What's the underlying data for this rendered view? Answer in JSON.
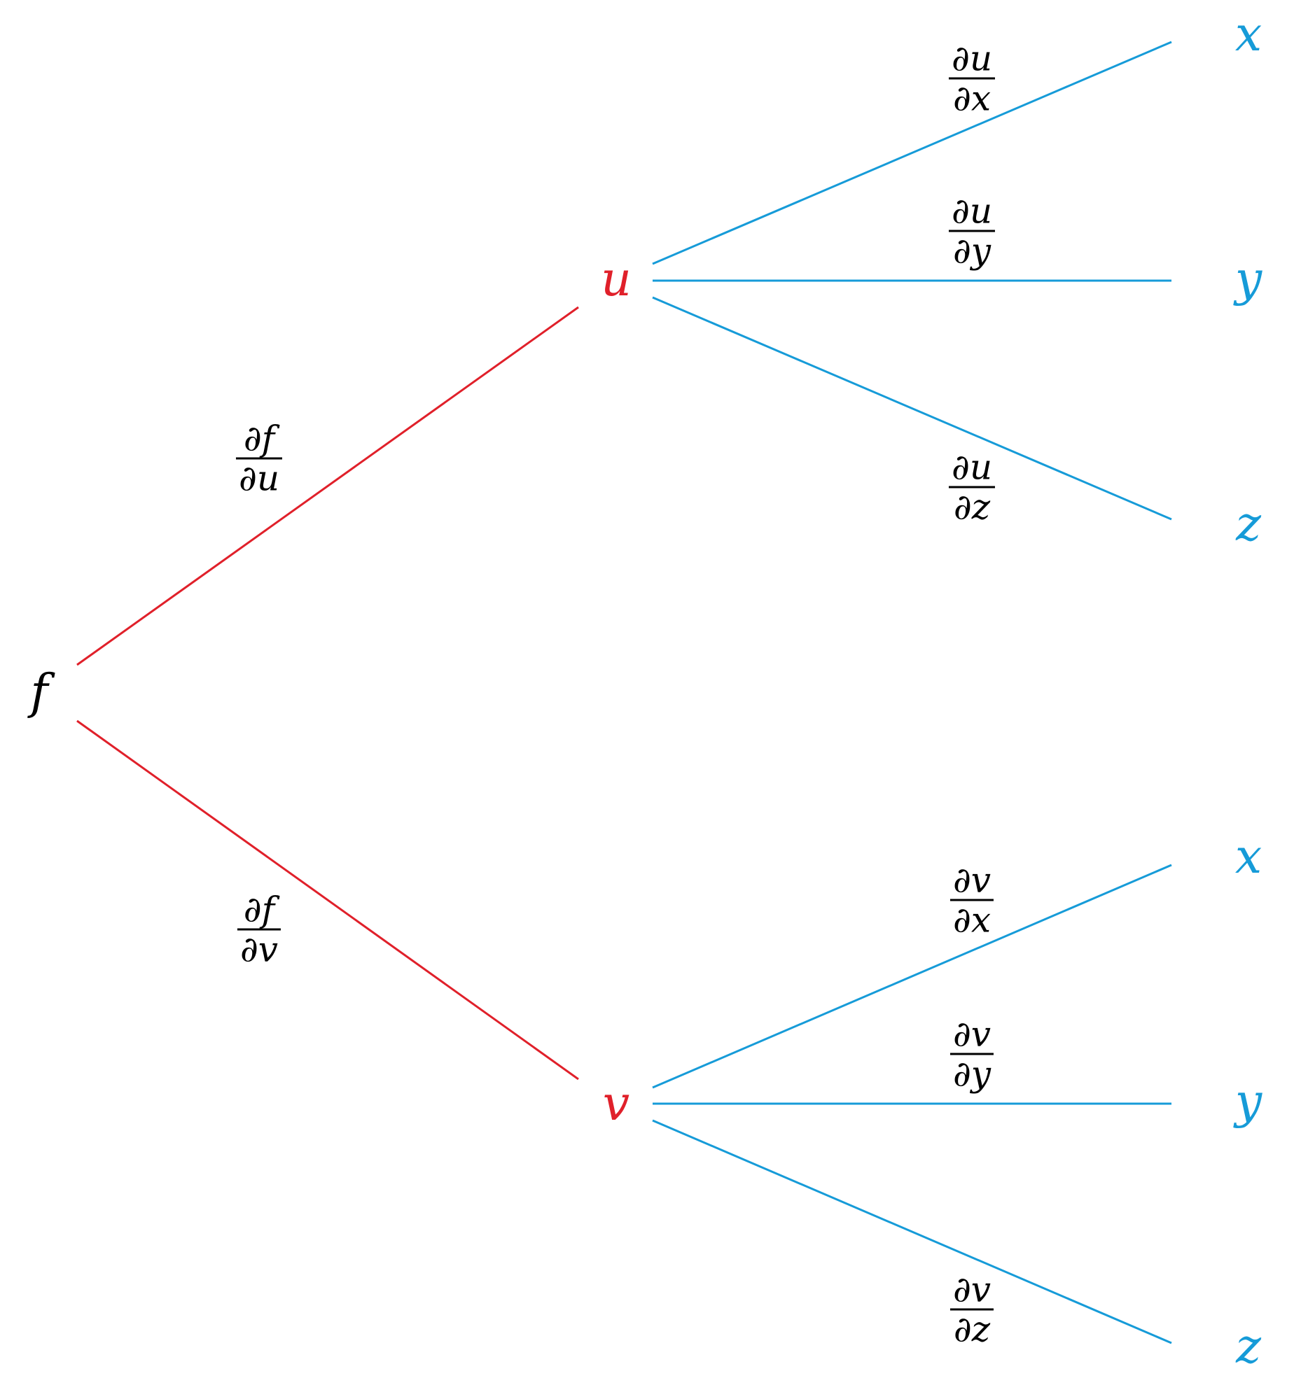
{
  "colors": {
    "root": "#000000",
    "intermediate": "#e0202a",
    "leaf": "#169bd8",
    "red_edge": "#e0202a",
    "blue_edge": "#169bd8",
    "label": "#000000"
  },
  "nodes": {
    "root": "f",
    "u": "u",
    "v": "v",
    "u_x": "x",
    "u_y": "y",
    "u_z": "z",
    "v_x": "x",
    "v_y": "y",
    "v_z": "z"
  },
  "labels": {
    "df_du": {
      "num": "∂f",
      "den": "∂u"
    },
    "df_dv": {
      "num": "∂f",
      "den": "∂v"
    },
    "du_dx": {
      "num": "∂u",
      "den": "∂x"
    },
    "du_dy": {
      "num": "∂u",
      "den": "∂y"
    },
    "du_dz": {
      "num": "∂u",
      "den": "∂z"
    },
    "dv_dx": {
      "num": "∂v",
      "den": "∂x"
    },
    "dv_dy": {
      "num": "∂v",
      "den": "∂y"
    },
    "dv_dz": {
      "num": "∂v",
      "den": "∂z"
    }
  },
  "edges": [
    {
      "from": "root",
      "to": "u",
      "color": "red_edge"
    },
    {
      "from": "root",
      "to": "v",
      "color": "red_edge"
    },
    {
      "from": "u",
      "to": "u_x",
      "color": "blue_edge"
    },
    {
      "from": "u",
      "to": "u_y",
      "color": "blue_edge"
    },
    {
      "from": "u",
      "to": "u_z",
      "color": "blue_edge"
    },
    {
      "from": "v",
      "to": "v_x",
      "color": "blue_edge"
    },
    {
      "from": "v",
      "to": "v_y",
      "color": "blue_edge"
    },
    {
      "from": "v",
      "to": "v_z",
      "color": "blue_edge"
    }
  ]
}
